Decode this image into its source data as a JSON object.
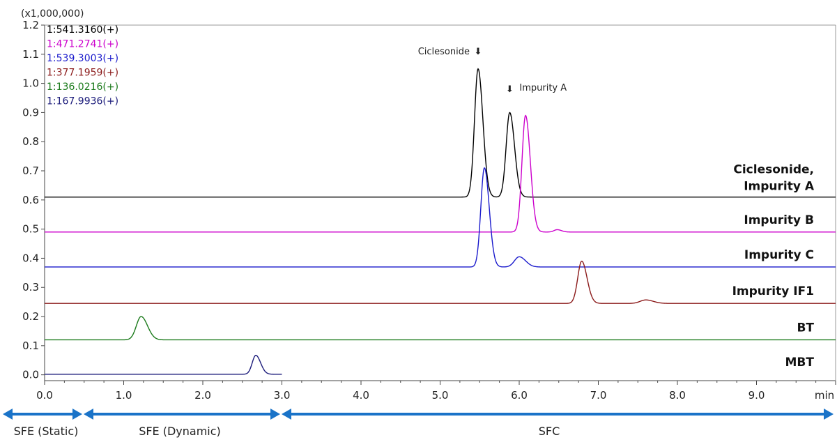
{
  "chart_data": {
    "type": "line",
    "title": "",
    "xlabel": "",
    "ylabel": "",
    "x_unit": "min",
    "y_multiplier": "(x1,000,000)",
    "xlim": [
      0.0,
      10.0
    ],
    "ylim": [
      -0.02,
      1.2
    ],
    "x_ticks": [
      "0.0",
      "1.0",
      "2.0",
      "3.0",
      "4.0",
      "5.0",
      "6.0",
      "7.0",
      "8.0",
      "9.0"
    ],
    "y_ticks": [
      "0.0",
      "0.1",
      "0.2",
      "0.3",
      "0.4",
      "0.5",
      "0.6",
      "0.7",
      "0.8",
      "0.9",
      "1.0",
      "1.1",
      "1.2"
    ],
    "grid": false,
    "legend_position": "top-left",
    "series": [
      {
        "name": "1:541.3160(+)",
        "trace_label": "Ciclesonide,\nImpurity A",
        "color": "#000000",
        "baseline": 0.61,
        "x_end": 10.0,
        "peaks": [
          {
            "rt": 5.48,
            "height": 0.44,
            "sigma": 0.045
          },
          {
            "rt": 5.88,
            "height": 0.29,
            "sigma": 0.045
          }
        ]
      },
      {
        "name": "1:471.2741(+)",
        "trace_label": "Impurity B",
        "color": "#cc00cc",
        "baseline": 0.49,
        "x_end": 10.0,
        "peaks": [
          {
            "rt": 6.08,
            "height": 0.4,
            "sigma": 0.045
          },
          {
            "rt": 6.48,
            "height": 0.008,
            "sigma": 0.04
          }
        ]
      },
      {
        "name": "1:539.3003(+)",
        "trace_label": "Impurity C",
        "color": "#1a1acc",
        "baseline": 0.37,
        "x_end": 10.0,
        "peaks": [
          {
            "rt": 5.56,
            "height": 0.34,
            "sigma": 0.045
          },
          {
            "rt": 6.0,
            "height": 0.035,
            "sigma": 0.06
          }
        ]
      },
      {
        "name": "1:377.1959(+)",
        "trace_label": "Impurity IF1",
        "color": "#8b1a1a",
        "baseline": 0.245,
        "x_end": 10.0,
        "peaks": [
          {
            "rt": 6.79,
            "height": 0.145,
            "sigma": 0.05
          },
          {
            "rt": 7.6,
            "height": 0.012,
            "sigma": 0.07
          }
        ]
      },
      {
        "name": "1:136.0216(+)",
        "trace_label": "BT",
        "color": "#1a7a1a",
        "baseline": 0.12,
        "x_end": 10.0,
        "peaks": [
          {
            "rt": 1.22,
            "height": 0.08,
            "sigma": 0.06
          }
        ]
      },
      {
        "name": "1:167.9936(+)",
        "trace_label": "MBT",
        "color": "#1a1a7a",
        "baseline": 0.002,
        "x_end": 3.0,
        "peaks": [
          {
            "rt": 2.67,
            "height": 0.065,
            "sigma": 0.045
          }
        ]
      }
    ],
    "annotations": [
      {
        "text": "Ciclesonide",
        "arrow": "⬇",
        "x": 5.48,
        "y": 1.1
      },
      {
        "text": "Impurity A",
        "arrow": "⬇",
        "x": 5.88,
        "y": 0.975
      }
    ],
    "phases": [
      {
        "label": "SFE (Static)",
        "x_start": 0.0,
        "x_end": 0.5
      },
      {
        "label": "SFE (Dynamic)",
        "x_start": 0.5,
        "x_end": 3.0
      },
      {
        "label": "SFC",
        "x_start": 3.0,
        "x_end": 10.0
      }
    ],
    "phase_color": "#1a73c8"
  }
}
